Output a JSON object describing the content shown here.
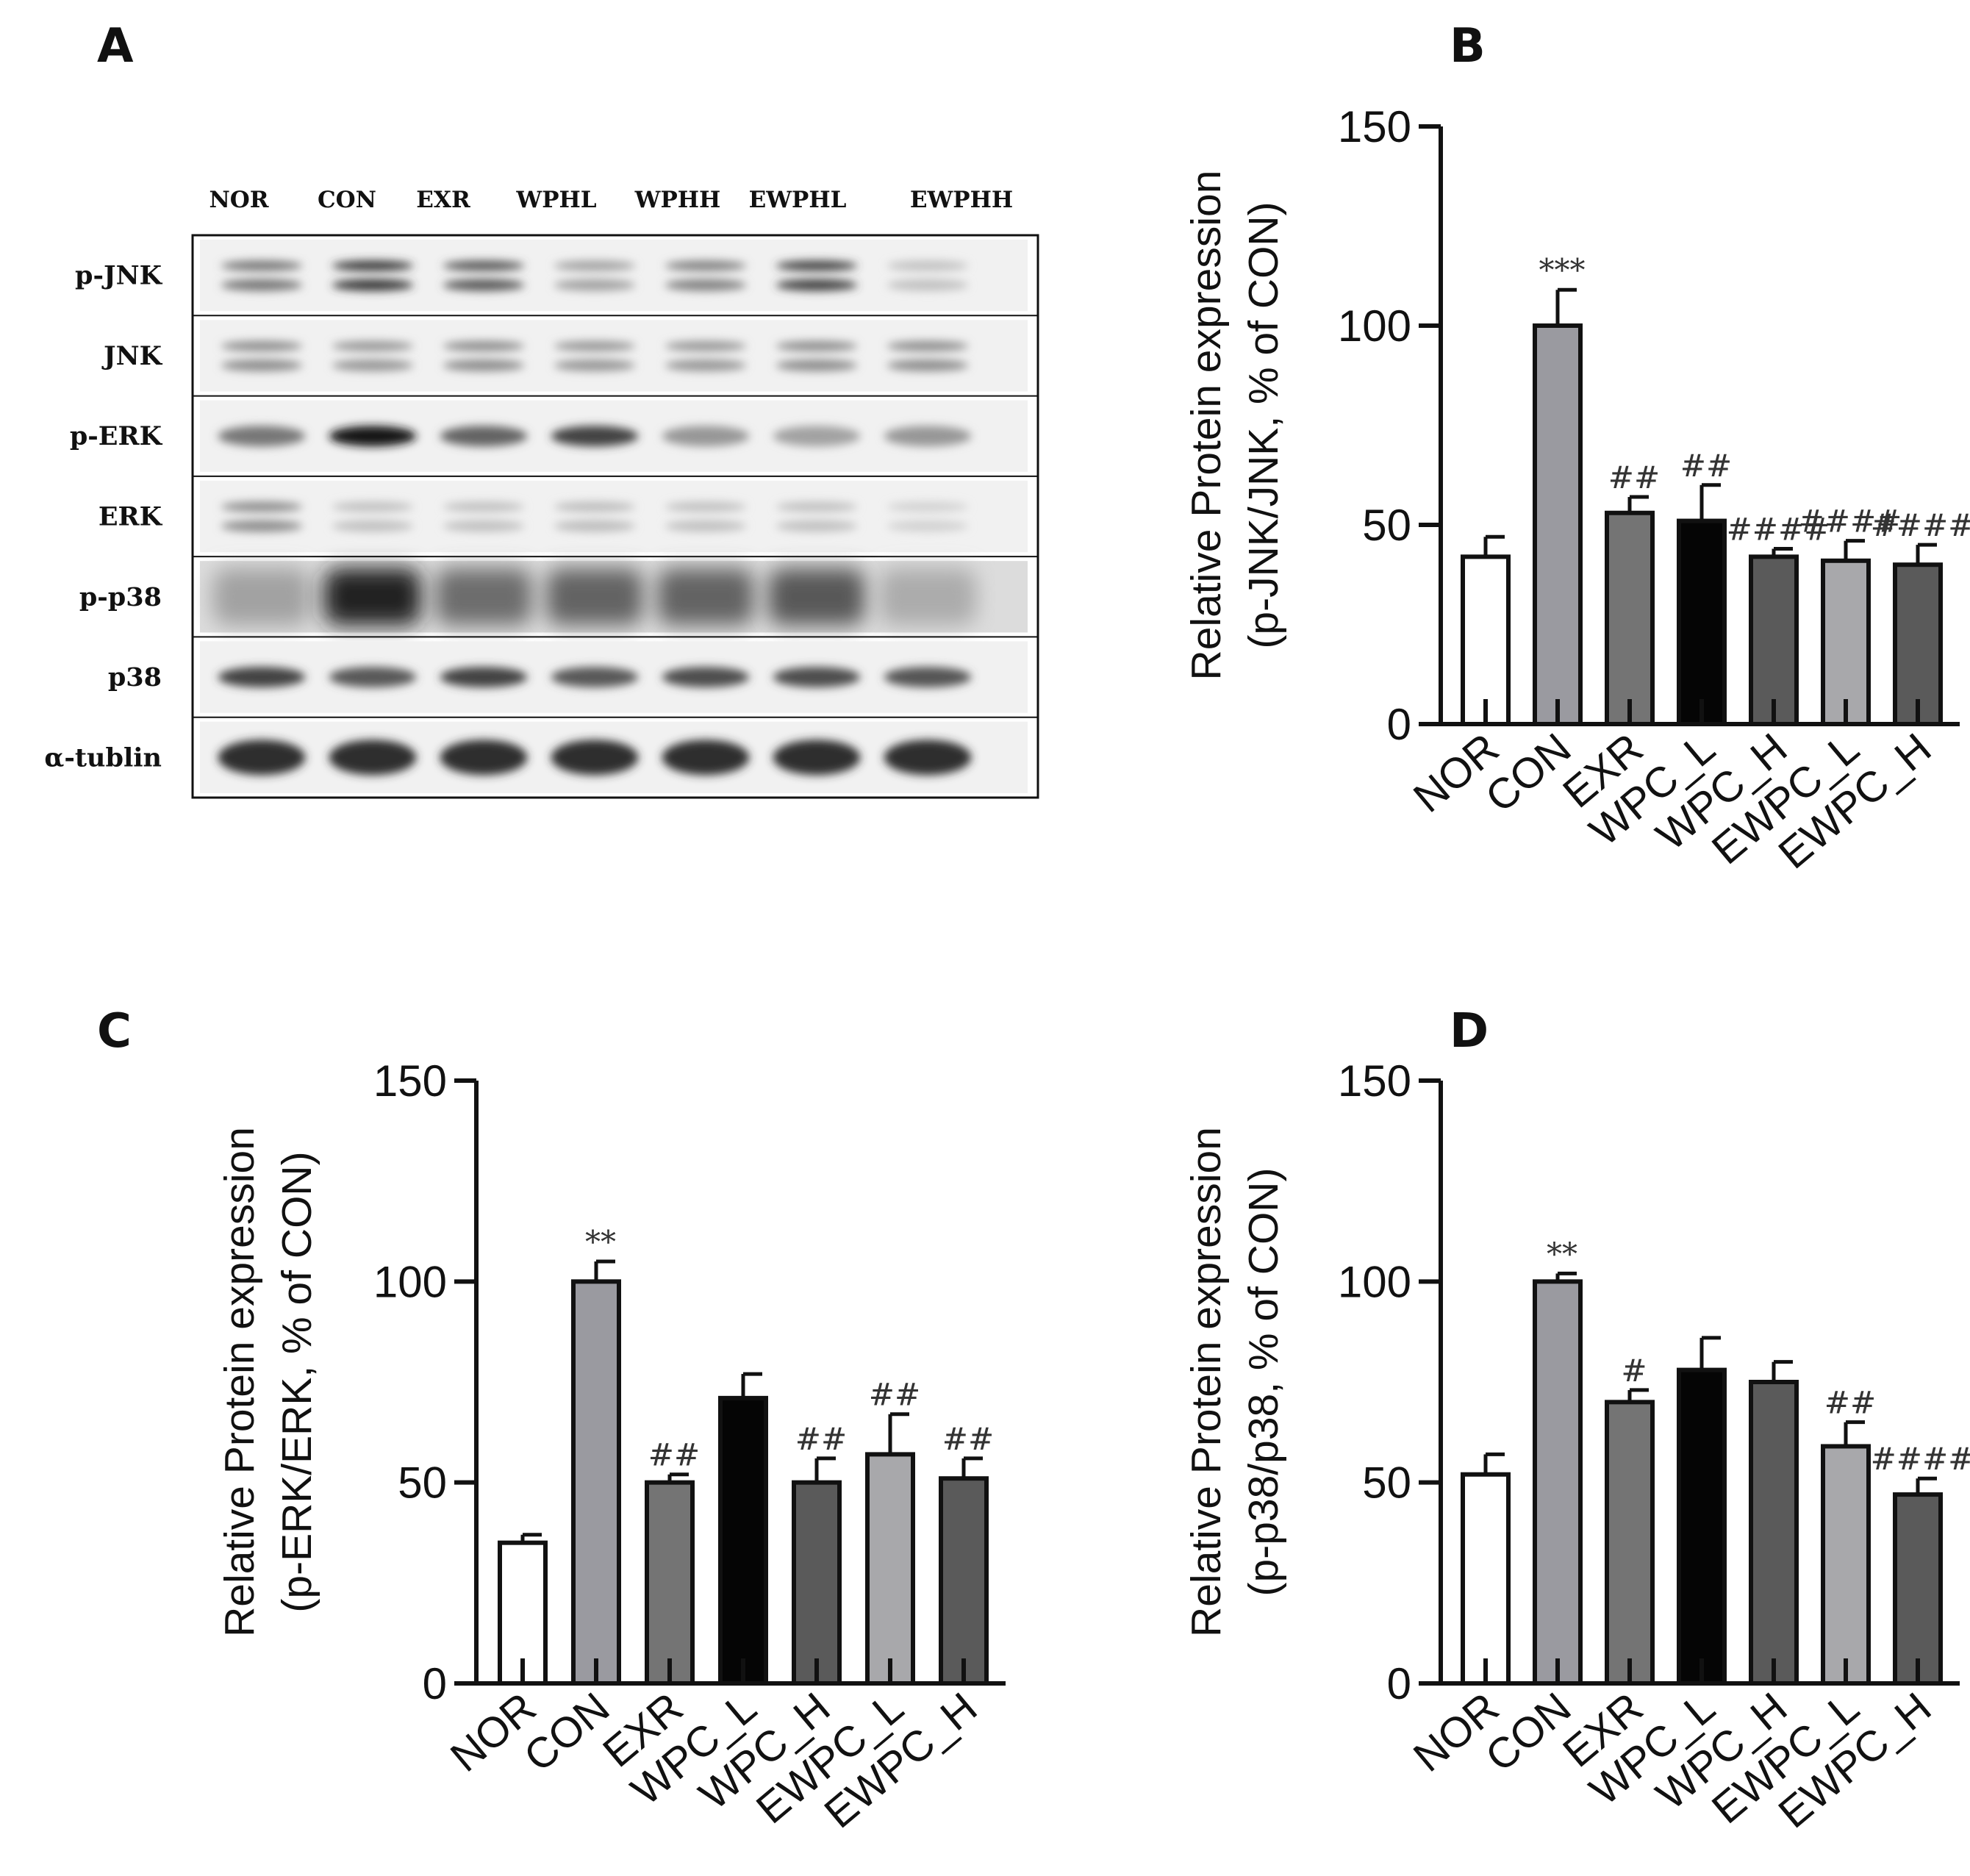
{
  "panels": {
    "a": "A",
    "b": "B",
    "c": "C",
    "d": "D"
  },
  "blot": {
    "lanes": [
      "NOR",
      "CON",
      "EXR",
      "WPHL",
      "WPHH",
      "EWPHL",
      "EWPHH"
    ],
    "rows": [
      {
        "label": "p-JNK",
        "intensity": [
          0.55,
          0.85,
          0.7,
          0.35,
          0.5,
          0.8,
          0.2
        ],
        "double": true
      },
      {
        "label": "JNK",
        "intensity": [
          0.45,
          0.4,
          0.45,
          0.4,
          0.4,
          0.45,
          0.45
        ],
        "double": true
      },
      {
        "label": "p-ERK",
        "intensity": [
          0.55,
          1.0,
          0.65,
          0.8,
          0.4,
          0.35,
          0.4
        ],
        "double": false
      },
      {
        "label": "ERK",
        "intensity": [
          0.45,
          0.2,
          0.2,
          0.22,
          0.2,
          0.2,
          0.12
        ],
        "double": true
      },
      {
        "label": "p-p38",
        "intensity": [
          0.35,
          0.95,
          0.6,
          0.65,
          0.65,
          0.7,
          0.3
        ],
        "smear": true
      },
      {
        "label": "p38",
        "intensity": [
          0.8,
          0.7,
          0.8,
          0.7,
          0.75,
          0.75,
          0.72
        ],
        "double": false
      },
      {
        "label": "α-tublin",
        "intensity": [
          0.9,
          0.9,
          0.9,
          0.9,
          0.9,
          0.9,
          0.9
        ],
        "double": false
      }
    ]
  },
  "chart_data": [
    {
      "id": "B",
      "type": "bar",
      "categories": [
        "NOR",
        "CON",
        "EXR",
        "WPC_L",
        "WPC_H",
        "EWPC_L",
        "EWPC_H"
      ],
      "values": [
        42,
        100,
        53,
        51,
        42,
        41,
        40
      ],
      "errors": [
        5,
        9,
        4,
        9,
        2,
        5,
        5
      ],
      "annotations": [
        "",
        "***",
        "##",
        "##",
        "####",
        "####",
        "####"
      ],
      "colors": [
        "#ffffff",
        "#9a9aa0",
        "#747474",
        "#050505",
        "#5a5a5a",
        "#a8a8ab",
        "#5a5a5a"
      ],
      "ylabel": [
        "Relative Protein expression",
        "(p-JNK/JNK, % of CON)"
      ],
      "yticks": [
        0,
        50,
        100,
        150
      ],
      "ylim": [
        0,
        150
      ]
    },
    {
      "id": "C",
      "type": "bar",
      "categories": [
        "NOR",
        "CON",
        "EXR",
        "WPC_L",
        "WPC_H",
        "EWPC_L",
        "EWPC_H"
      ],
      "values": [
        35,
        100,
        50,
        71,
        50,
        57,
        51
      ],
      "errors": [
        2,
        5,
        2,
        6,
        6,
        10,
        5
      ],
      "annotations": [
        "",
        "**",
        "##",
        "",
        "##",
        "##",
        "##"
      ],
      "colors": [
        "#ffffff",
        "#9a9aa0",
        "#747474",
        "#050505",
        "#5a5a5a",
        "#a8a8ab",
        "#5a5a5a"
      ],
      "ylabel": [
        "Relative Protein expression",
        "(p-ERK/ERK, % of CON)"
      ],
      "yticks": [
        0,
        50,
        100,
        150
      ],
      "ylim": [
        0,
        150
      ]
    },
    {
      "id": "D",
      "type": "bar",
      "categories": [
        "NOR",
        "CON",
        "EXR",
        "WPC_L",
        "WPC_H",
        "EWPC_L",
        "EWPC_H"
      ],
      "values": [
        52,
        100,
        70,
        78,
        75,
        59,
        47
      ],
      "errors": [
        5,
        2,
        3,
        8,
        5,
        6,
        4
      ],
      "annotations": [
        "",
        "**",
        "#",
        "",
        "",
        "##",
        "####"
      ],
      "colors": [
        "#ffffff",
        "#9a9aa0",
        "#747474",
        "#050505",
        "#5a5a5a",
        "#a8a8ab",
        "#5a5a5a"
      ],
      "ylabel": [
        "Relative Protein expression",
        "(p-p38/p38, % of CON)"
      ],
      "yticks": [
        0,
        50,
        100,
        150
      ],
      "ylim": [
        0,
        150
      ]
    }
  ]
}
